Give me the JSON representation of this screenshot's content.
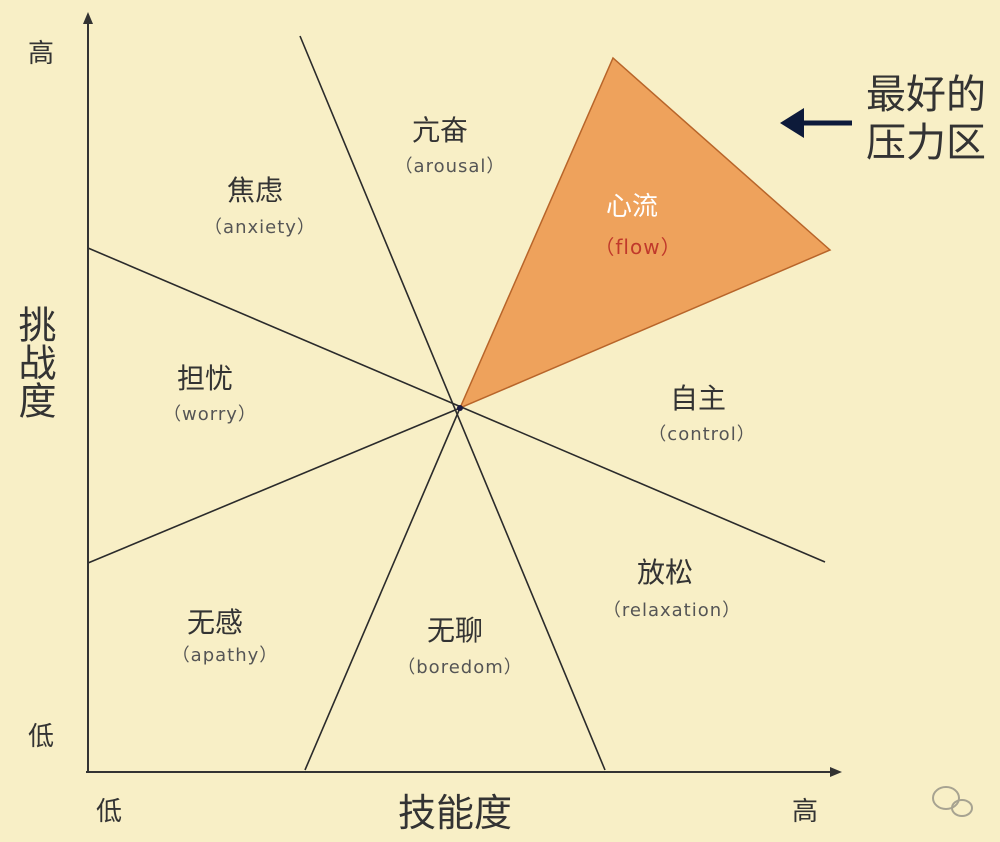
{
  "axes": {
    "y_title": "挑战度",
    "y_high": "高",
    "y_low": "低",
    "x_title": "技能度",
    "x_low": "低",
    "x_high": "高"
  },
  "zones": {
    "arousal": {
      "zh": "亢奋",
      "en": "（arousal）"
    },
    "anxiety": {
      "zh": "焦虑",
      "en": "（anxiety）"
    },
    "worry": {
      "zh": "担忧",
      "en": "（worry）"
    },
    "apathy": {
      "zh": "无感",
      "en": "（apathy）"
    },
    "boredom": {
      "zh": "无聊",
      "en": "（boredom）"
    },
    "relaxation": {
      "zh": "放松",
      "en": "（relaxation）"
    },
    "control": {
      "zh": "自主",
      "en": "（control）"
    },
    "flow": {
      "zh": "心流",
      "en": "（flow）"
    }
  },
  "callout": {
    "line1": "最好的",
    "line2": "压力区"
  },
  "colors": {
    "background": "#f8efc6",
    "flow_fill": "#eea25c",
    "flow_text_zh": "#ffffff",
    "flow_text_en": "#c0392b",
    "arrow": "#0d1a3a"
  }
}
